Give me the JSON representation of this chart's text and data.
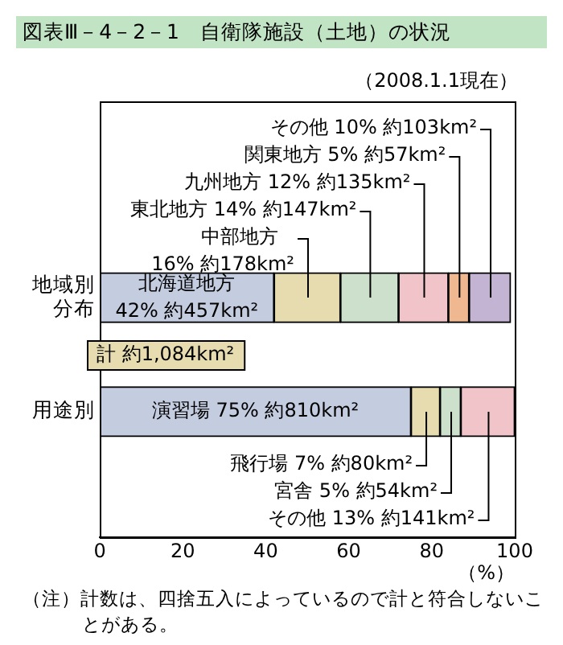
{
  "chart_data": {
    "type": "bar",
    "orientation": "horizontal",
    "stacked": true,
    "title": "図表Ⅲ－4－2－1　自衛隊施設（土地）の状況",
    "xlabel": "（%）",
    "categories": [
      "地域別分布",
      "用途別"
    ],
    "series": [
      {
        "color": "#c4cce0",
        "values": [
          42,
          75
        ],
        "value_labels": [
          "北海道地方 42% 約457km²",
          "演習場 75% 約810km²"
        ]
      },
      {
        "color": "#e6dcb0",
        "values": [
          16,
          7
        ],
        "value_labels": [
          "中部地方 16% 約178km²",
          "飛行場 7% 約80km²"
        ]
      },
      {
        "color": "#cce0cc",
        "values": [
          14,
          5
        ],
        "value_labels": [
          "東北地方 14% 約147km²",
          "宮舎 5% 約54km²"
        ]
      },
      {
        "color": "#f0c4c8",
        "values": [
          12,
          13
        ],
        "value_labels": [
          "九州地方 12% 約135km²",
          "その他 13% 約141km²"
        ]
      },
      {
        "color": "#f0b890",
        "values": [
          5,
          null
        ],
        "value_labels": [
          "関東地方 5% 約57km²",
          null
        ]
      },
      {
        "color": "#c4b4d4",
        "values": [
          10,
          null
        ],
        "value_labels": [
          "その他 10% 約103km²",
          null
        ]
      }
    ],
    "xlim": [
      0,
      100
    ],
    "xticks": [
      0,
      20,
      40,
      60,
      80,
      100
    ],
    "grid": false,
    "legend": false,
    "annotations": [
      "（2008.1.1現在）",
      "計 約1,084km²",
      "（注）計数は、四捨五入によっているので計と符合しないことがある。"
    ]
  }
}
